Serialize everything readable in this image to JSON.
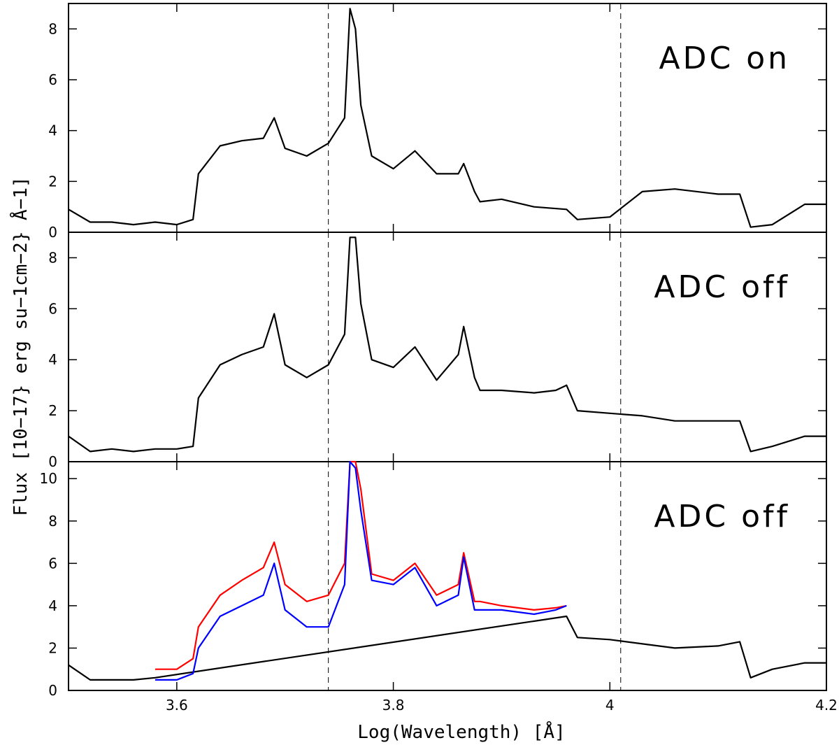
{
  "figure": {
    "xlabel": "Log(Wavelength) [Å]",
    "ylabel": "Flux [10−17} erg su−1cm−2} Å−1]"
  },
  "chart_data": [
    {
      "type": "line",
      "panel_label": "ADC on",
      "xlim": [
        3.5,
        4.2
      ],
      "ylim": [
        0,
        9
      ],
      "x_ticks": [
        3.6,
        3.8,
        4.0,
        4.2
      ],
      "x_tick_labels": [
        "",
        "",
        "",
        ""
      ],
      "y_ticks": [
        0,
        2,
        4,
        6,
        8
      ],
      "y_tick_labels": [
        "0",
        "2",
        "4",
        "6",
        "8"
      ],
      "vlines_dashed": [
        3.74,
        4.01
      ],
      "series": [
        {
          "color": "#000000",
          "x": [
            3.5,
            3.52,
            3.54,
            3.56,
            3.58,
            3.6,
            3.615,
            3.62,
            3.64,
            3.66,
            3.68,
            3.69,
            3.7,
            3.72,
            3.74,
            3.755,
            3.76,
            3.765,
            3.77,
            3.78,
            3.8,
            3.82,
            3.84,
            3.86,
            3.865,
            3.875,
            3.88,
            3.9,
            3.93,
            3.96,
            3.97,
            4.0,
            4.03,
            4.06,
            4.1,
            4.12,
            4.13,
            4.15,
            4.18,
            4.2
          ],
          "y": [
            0.9,
            0.4,
            0.4,
            0.3,
            0.4,
            0.3,
            0.5,
            2.3,
            3.4,
            3.6,
            3.7,
            4.5,
            3.3,
            3.0,
            3.5,
            4.5,
            8.8,
            8.0,
            5.0,
            3.0,
            2.5,
            3.2,
            2.3,
            2.3,
            2.7,
            1.6,
            1.2,
            1.3,
            1.0,
            0.9,
            0.5,
            0.6,
            1.6,
            1.7,
            1.5,
            1.5,
            0.2,
            0.3,
            1.1,
            1.1
          ]
        }
      ]
    },
    {
      "type": "line",
      "panel_label": "ADC off",
      "xlim": [
        3.5,
        4.2
      ],
      "ylim": [
        0,
        9
      ],
      "x_ticks": [
        3.6,
        3.8,
        4.0,
        4.2
      ],
      "x_tick_labels": [
        "",
        "",
        "",
        ""
      ],
      "y_ticks": [
        0,
        2,
        4,
        6,
        8
      ],
      "y_tick_labels": [
        "0",
        "2",
        "4",
        "6",
        "8"
      ],
      "vlines_dashed": [
        3.74,
        4.01
      ],
      "series": [
        {
          "color": "#000000",
          "x": [
            3.5,
            3.52,
            3.54,
            3.56,
            3.58,
            3.6,
            3.615,
            3.62,
            3.64,
            3.66,
            3.68,
            3.69,
            3.7,
            3.72,
            3.74,
            3.755,
            3.76,
            3.765,
            3.77,
            3.78,
            3.8,
            3.82,
            3.84,
            3.86,
            3.865,
            3.875,
            3.88,
            3.9,
            3.93,
            3.95,
            3.96,
            3.97,
            4.0,
            4.03,
            4.06,
            4.1,
            4.12,
            4.13,
            4.15,
            4.18,
            4.2
          ],
          "y": [
            1.0,
            0.4,
            0.5,
            0.4,
            0.5,
            0.5,
            0.6,
            2.5,
            3.8,
            4.2,
            4.5,
            5.8,
            3.8,
            3.3,
            3.8,
            5.0,
            8.8,
            8.8,
            6.2,
            4.0,
            3.7,
            4.5,
            3.2,
            4.2,
            5.3,
            3.3,
            2.8,
            2.8,
            2.7,
            2.8,
            3.0,
            2.0,
            1.9,
            1.8,
            1.6,
            1.6,
            1.6,
            0.4,
            0.6,
            1.0,
            1.0
          ]
        }
      ]
    },
    {
      "type": "line",
      "panel_label": "ADC off",
      "xlim": [
        3.5,
        4.2
      ],
      "ylim": [
        0,
        10.8
      ],
      "x_ticks": [
        3.6,
        3.8,
        4.0,
        4.2
      ],
      "x_tick_labels": [
        "3.6",
        "3.8",
        "4",
        "4.2"
      ],
      "y_ticks": [
        0,
        2,
        4,
        6,
        8,
        10
      ],
      "y_tick_labels": [
        "0",
        "2",
        "4",
        "6",
        "8",
        "10"
      ],
      "vlines_dashed": [
        3.74,
        4.01
      ],
      "series": [
        {
          "color": "#000000",
          "x": [
            3.5,
            3.52,
            3.54,
            3.56,
            3.58,
            3.96,
            3.97,
            4.0,
            4.03,
            4.06,
            4.1,
            4.12,
            4.13,
            4.15,
            4.18,
            4.2
          ],
          "y": [
            1.2,
            0.5,
            0.5,
            0.5,
            0.6,
            3.5,
            2.5,
            2.4,
            2.2,
            2.0,
            2.1,
            2.3,
            0.6,
            1.0,
            1.3,
            1.3
          ]
        },
        {
          "color": "#ff0000",
          "x": [
            3.58,
            3.6,
            3.615,
            3.62,
            3.64,
            3.66,
            3.68,
            3.69,
            3.7,
            3.72,
            3.74,
            3.755,
            3.76,
            3.765,
            3.77,
            3.78,
            3.8,
            3.82,
            3.84,
            3.86,
            3.865,
            3.875,
            3.88,
            3.9,
            3.93,
            3.95,
            3.96
          ],
          "y": [
            1.0,
            1.0,
            1.5,
            3.0,
            4.5,
            5.2,
            5.8,
            7.0,
            5.0,
            4.2,
            4.5,
            6.0,
            10.8,
            10.8,
            9.5,
            5.5,
            5.2,
            6.0,
            4.5,
            5.0,
            6.5,
            4.2,
            4.2,
            4.0,
            3.8,
            3.9,
            4.0
          ]
        },
        {
          "color": "#0000ff",
          "x": [
            3.58,
            3.6,
            3.615,
            3.62,
            3.64,
            3.66,
            3.68,
            3.69,
            3.7,
            3.72,
            3.74,
            3.755,
            3.76,
            3.765,
            3.77,
            3.78,
            3.8,
            3.82,
            3.84,
            3.86,
            3.865,
            3.875,
            3.88,
            3.9,
            3.93,
            3.95,
            3.96
          ],
          "y": [
            0.5,
            0.5,
            0.8,
            2.0,
            3.5,
            4.0,
            4.5,
            6.0,
            3.8,
            3.0,
            3.0,
            5.0,
            10.8,
            10.5,
            8.5,
            5.2,
            5.0,
            5.8,
            4.0,
            4.5,
            6.3,
            3.8,
            3.8,
            3.8,
            3.6,
            3.8,
            4.0
          ]
        }
      ]
    }
  ]
}
